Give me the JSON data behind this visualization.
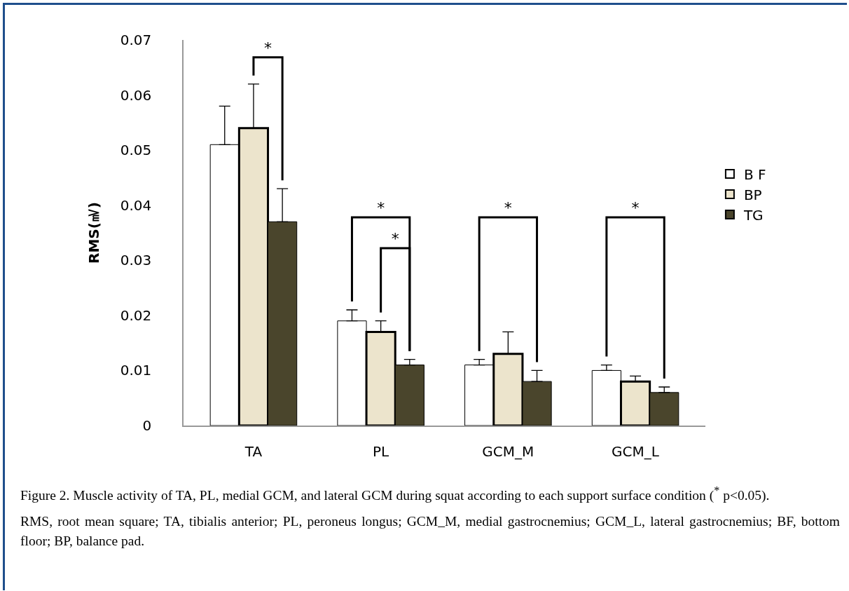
{
  "chart_data": {
    "type": "bar",
    "ylabel": "RMS(㎷)",
    "categories": [
      "TA",
      "PL",
      "GCM_M",
      "GCM_L"
    ],
    "series": [
      {
        "name": "B F",
        "color": "#ffffff",
        "values": [
          0.051,
          0.019,
          0.011,
          0.01
        ],
        "errors": [
          0.007,
          0.002,
          0.001,
          0.001
        ]
      },
      {
        "name": "BP",
        "color": "#ece4cc",
        "values": [
          0.054,
          0.017,
          0.013,
          0.008
        ],
        "errors": [
          0.008,
          0.002,
          0.004,
          0.001
        ]
      },
      {
        "name": "TG",
        "color": "#4a452c",
        "values": [
          0.037,
          0.011,
          0.008,
          0.006
        ],
        "errors": [
          0.006,
          0.001,
          0.002,
          0.001
        ]
      }
    ],
    "ylim": [
      0,
      0.07
    ],
    "yticks": [
      0,
      0.01,
      0.02,
      0.03,
      0.04,
      0.05,
      0.06,
      0.07
    ],
    "grid": false,
    "legend": "right",
    "annotations": [
      "*",
      "*",
      "*",
      "*",
      "*",
      "Figure 2. Muscle activity of TA, PL, medial GCM, and lateral GCM during squat according to each support surface condition ($^{*}$ p<0.05).",
      "RMS, root mean square; TA, tibialis anterior; PL, peroneus longus; GCM_M, medial gastrocnemius; GCM_L, lateral gastrocnemius; BF, bottom floor; BP, balance pad."
    ]
  }
}
